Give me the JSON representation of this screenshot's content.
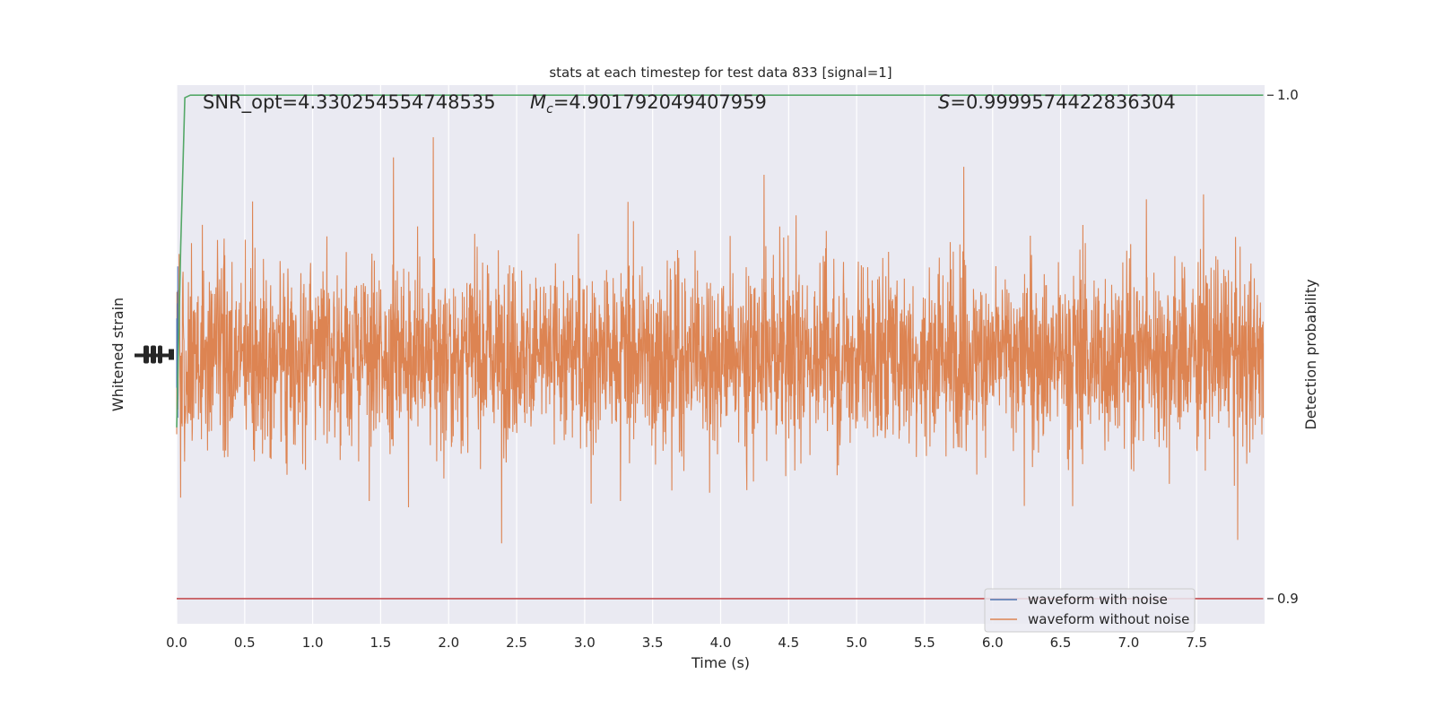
{
  "chart_data": {
    "type": "line",
    "title": "stats at each timestep for test data 833 [signal=1]",
    "xlabel": "Time (s)",
    "ylabel_left": "Whitened strain",
    "ylabel_right": "Detection probability",
    "xlim": [
      0.0,
      8.0
    ],
    "x_ticks": [
      "0.0",
      "0.5",
      "1.0",
      "1.5",
      "2.0",
      "2.5",
      "3.0",
      "3.5",
      "4.0",
      "4.5",
      "5.0",
      "5.5",
      "6.0",
      "6.5",
      "7.0",
      "7.5"
    ],
    "right_ylim": [
      0.895,
      1.002
    ],
    "right_ticks": [
      "0.9",
      "1.0"
    ],
    "left_ylim": [
      -5,
      5
    ],
    "annotations": {
      "snr": "SNR_opt=4.330254554748535",
      "mc_symbol": "M",
      "mc_sub": "c",
      "mc_value": "=4.901792049407959",
      "s_symbol": "S",
      "s_value": "=0.9999574422836304"
    },
    "legend": {
      "location": "lower right",
      "entries": [
        "waveform with noise",
        "waveform without noise"
      ]
    },
    "series": [
      {
        "name": "waveform with noise",
        "color": "#4c72b0",
        "description_values": "whitened noisy strain, visible only at the left edge"
      },
      {
        "name": "waveform without noise",
        "color": "#dd8452",
        "amplitude_approx": 4.0,
        "duration_s": 8.0
      },
      {
        "color": "#55a868",
        "axis": "right",
        "x": [
          0.0,
          0.03,
          0.06,
          0.1,
          7.99
        ],
        "y": [
          0.934,
          0.97,
          0.9995,
          1.0,
          1.0
        ]
      },
      {
        "color": "#c44e52",
        "axis": "right",
        "x": [
          0.0,
          7.99
        ],
        "y": [
          0.9,
          0.9
        ]
      }
    ],
    "grid": true,
    "background": "#eaeaf2"
  }
}
